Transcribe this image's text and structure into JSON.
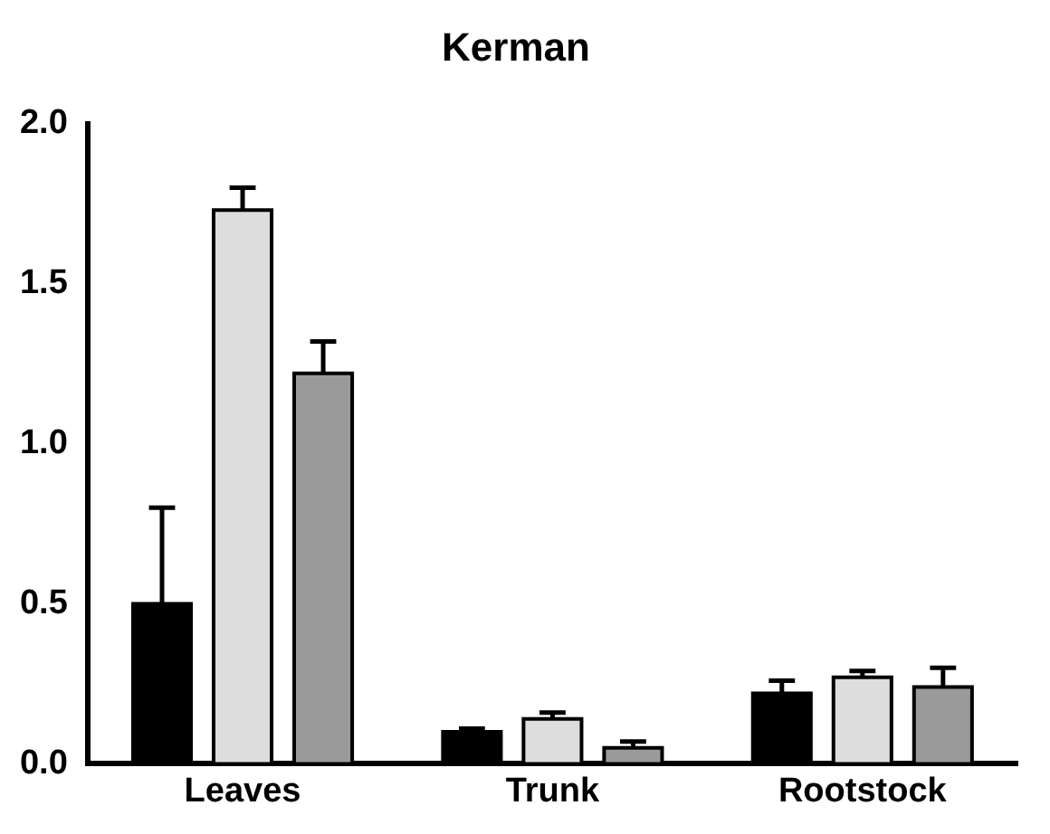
{
  "chart_data": {
    "type": "bar",
    "title": "Kerman",
    "categories": [
      "Leaves",
      "Trunk",
      "Rootstock"
    ],
    "series": [
      {
        "color": "#000000",
        "values": [
          0.5,
          0.1,
          0.22
        ],
        "errors": [
          [
            0.5,
            0.8
          ],
          [
            0.1,
            0.11
          ],
          [
            0.22,
            0.26
          ]
        ]
      },
      {
        "color": "#dddddd",
        "values": [
          1.73,
          0.14,
          0.27
        ],
        "errors": [
          [
            1.73,
            1.8
          ],
          [
            0.14,
            0.16
          ],
          [
            0.27,
            0.29
          ]
        ]
      },
      {
        "color": "#9a9a9a",
        "values": [
          1.22,
          0.05,
          0.24
        ],
        "errors": [
          [
            1.22,
            1.32
          ],
          [
            0.05,
            0.07
          ],
          [
            0.24,
            0.3
          ]
        ]
      }
    ],
    "ylim": [
      0,
      2
    ],
    "yticks": [
      {
        "value": 0,
        "label": "0.0"
      },
      {
        "value": 0.5,
        "label": "0.5"
      },
      {
        "value": 1,
        "label": "1.0"
      },
      {
        "value": 1.5,
        "label": "1.5"
      },
      {
        "value": 2,
        "label": "2.0"
      }
    ],
    "grid": false,
    "legend": false
  }
}
